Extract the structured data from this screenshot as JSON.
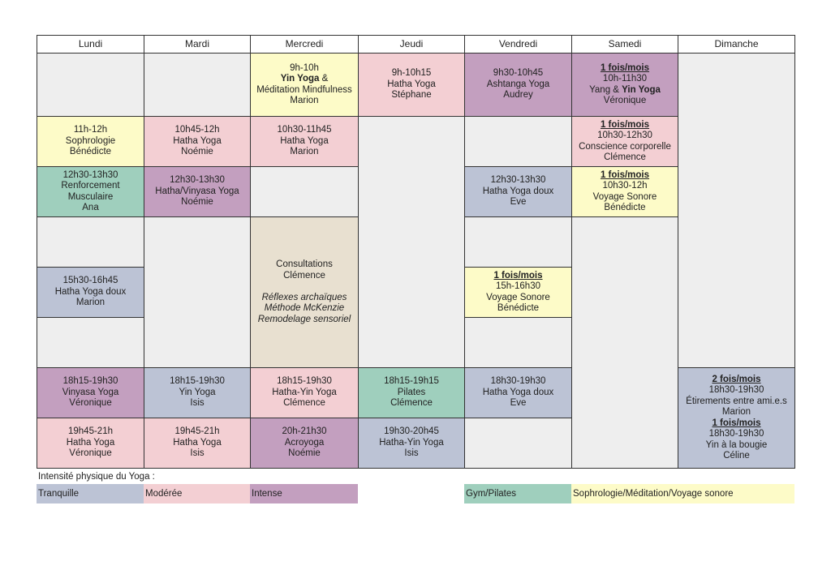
{
  "colors": {
    "tranquille": "#bcc3d5",
    "moderee": "#f3cfd3",
    "intense": "#c39fbf",
    "gym": "#9fcfbd",
    "sophro": "#fdfbc8",
    "consult": "#e8e0d0",
    "empty": "#eeeeee"
  },
  "days": [
    "Lundi",
    "Mardi",
    "Mercredi",
    "Jeudi",
    "Vendredi",
    "Samedi",
    "Dimanche"
  ],
  "cells": {
    "mer1": {
      "color": "sophro",
      "lines": [
        [
          {
            "t": "9h-10h"
          }
        ],
        [
          {
            "t": "Yin Yoga",
            "b": 1
          },
          {
            "t": " &"
          }
        ],
        [
          {
            "t": "Méditation Mindfulness"
          }
        ],
        [
          {
            "t": "Marion"
          }
        ]
      ]
    },
    "jeu1": {
      "color": "moderee",
      "lines": [
        [
          {
            "t": "9h-10h15"
          }
        ],
        [
          {
            "t": "Hatha Yoga"
          }
        ],
        [
          {
            "t": "Stéphane"
          }
        ]
      ]
    },
    "ven1": {
      "color": "intense",
      "lines": [
        [
          {
            "t": "9h30-10h45"
          }
        ],
        [
          {
            "t": "Ashtanga Yoga"
          }
        ],
        [
          {
            "t": "Audrey"
          }
        ]
      ]
    },
    "sam1": {
      "color": "intense",
      "lines": [
        [
          {
            "t": "1 fois/mois",
            "b": 1,
            "u": 1
          }
        ],
        [
          {
            "t": "10h-11h30"
          }
        ],
        [
          {
            "t": "Yang & "
          },
          {
            "t": "Yin Yoga",
            "b": 1
          }
        ],
        [
          {
            "t": "Véronique"
          }
        ]
      ]
    },
    "lun2": {
      "color": "sophro",
      "lines": [
        [
          {
            "t": "11h-12h"
          }
        ],
        [
          {
            "t": "Sophrologie"
          }
        ],
        [
          {
            "t": "Bénédicte"
          }
        ]
      ]
    },
    "mar2": {
      "color": "moderee",
      "lines": [
        [
          {
            "t": "10h45-12h"
          }
        ],
        [
          {
            "t": "Hatha Yoga"
          }
        ],
        [
          {
            "t": "Noémie"
          }
        ]
      ]
    },
    "mer2": {
      "color": "moderee",
      "lines": [
        [
          {
            "t": "10h30-11h45"
          }
        ],
        [
          {
            "t": "Hatha Yoga"
          }
        ],
        [
          {
            "t": "Marion"
          }
        ]
      ]
    },
    "sam2": {
      "color": "moderee",
      "lines": [
        [
          {
            "t": "1 fois/mois",
            "b": 1,
            "u": 1
          }
        ],
        [
          {
            "t": "10h30-12h30"
          }
        ],
        [
          {
            "t": "Conscience corporelle"
          }
        ],
        [
          {
            "t": "Clémence"
          }
        ]
      ]
    },
    "lun3": {
      "color": "gym",
      "lines": [
        [
          {
            "t": "12h30-13h30"
          }
        ],
        [
          {
            "t": "Renforcement"
          }
        ],
        [
          {
            "t": "Musculaire"
          }
        ],
        [
          {
            "t": "Ana"
          }
        ]
      ]
    },
    "mar3": {
      "color": "intense",
      "lines": [
        [
          {
            "t": "12h30-13h30"
          }
        ],
        [
          {
            "t": "Hatha/Vinyasa Yoga"
          }
        ],
        [
          {
            "t": "Noémie"
          }
        ]
      ]
    },
    "ven3": {
      "color": "tranquille",
      "lines": [
        [
          {
            "t": "12h30-13h30"
          }
        ],
        [
          {
            "t": "Hatha Yoga doux"
          }
        ],
        [
          {
            "t": "Eve"
          }
        ]
      ]
    },
    "sam3": {
      "color": "sophro",
      "lines": [
        [
          {
            "t": "1 fois/mois",
            "b": 1,
            "u": 1
          }
        ],
        [
          {
            "t": "10h30-12h"
          }
        ],
        [
          {
            "t": "Voyage Sonore"
          }
        ],
        [
          {
            "t": "Bénédicte"
          }
        ]
      ]
    },
    "mer4": {
      "color": "consult",
      "lines": [
        [
          {
            "t": "Consultations"
          }
        ],
        [
          {
            "t": "Clémence"
          }
        ],
        [
          {
            "t": " "
          }
        ],
        [
          {
            "t": "Réflexes archaïques",
            "i": 1
          }
        ],
        [
          {
            "t": "Méthode McKenzie",
            "i": 1
          }
        ],
        [
          {
            "t": "Remodelage sensoriel",
            "i": 1
          }
        ]
      ]
    },
    "lun5": {
      "color": "tranquille",
      "lines": [
        [
          {
            "t": "15h30-16h45"
          }
        ],
        [
          {
            "t": "Hatha Yoga doux"
          }
        ],
        [
          {
            "t": "Marion"
          }
        ]
      ]
    },
    "ven5": {
      "color": "sophro",
      "lines": [
        [
          {
            "t": "1 fois/mois",
            "b": 1,
            "u": 1
          }
        ],
        [
          {
            "t": "15h-16h30"
          }
        ],
        [
          {
            "t": "Voyage Sonore"
          }
        ],
        [
          {
            "t": "Bénédicte"
          }
        ]
      ]
    },
    "lun7": {
      "color": "intense",
      "lines": [
        [
          {
            "t": "18h15-19h30"
          }
        ],
        [
          {
            "t": "Vinyasa Yoga"
          }
        ],
        [
          {
            "t": "Véronique"
          }
        ]
      ]
    },
    "mar7": {
      "color": "tranquille",
      "lines": [
        [
          {
            "t": "18h15-19h30"
          }
        ],
        [
          {
            "t": "Yin Yoga"
          }
        ],
        [
          {
            "t": "Isis"
          }
        ]
      ]
    },
    "mer7": {
      "color": "moderee",
      "lines": [
        [
          {
            "t": "18h15-19h30"
          }
        ],
        [
          {
            "t": "Hatha-Yin Yoga"
          }
        ],
        [
          {
            "t": "Clémence"
          }
        ]
      ]
    },
    "jeu7": {
      "color": "gym",
      "lines": [
        [
          {
            "t": "18h15-19h15"
          }
        ],
        [
          {
            "t": "Pilates"
          }
        ],
        [
          {
            "t": "Clémence"
          }
        ]
      ]
    },
    "ven7": {
      "color": "tranquille",
      "lines": [
        [
          {
            "t": "18h30-19h30"
          }
        ],
        [
          {
            "t": "Hatha Yoga doux"
          }
        ],
        [
          {
            "t": "Eve"
          }
        ]
      ]
    },
    "dim7": {
      "color": "tranquille",
      "lines": [
        [
          {
            "t": "2 fois/mois",
            "b": 1,
            "u": 1
          }
        ],
        [
          {
            "t": "18h30-19h30"
          }
        ],
        [
          {
            "t": "Étirements entre ami.e.s"
          }
        ],
        [
          {
            "t": "Marion"
          }
        ],
        [
          {
            "t": "1 fois/mois",
            "b": 1,
            "u": 1
          }
        ],
        [
          {
            "t": "18h30-19h30"
          }
        ],
        [
          {
            "t": "Yin à la bougie"
          }
        ],
        [
          {
            "t": "Céline"
          }
        ]
      ]
    },
    "lun8": {
      "color": "moderee",
      "lines": [
        [
          {
            "t": "19h45-21h"
          }
        ],
        [
          {
            "t": "Hatha Yoga"
          }
        ],
        [
          {
            "t": "Véronique"
          }
        ]
      ]
    },
    "mar8": {
      "color": "moderee",
      "lines": [
        [
          {
            "t": "19h45-21h"
          }
        ],
        [
          {
            "t": "Hatha Yoga"
          }
        ],
        [
          {
            "t": "Isis"
          }
        ]
      ]
    },
    "mer8": {
      "color": "intense",
      "lines": [
        [
          {
            "t": "20h-21h30"
          }
        ],
        [
          {
            "t": "Acroyoga"
          }
        ],
        [
          {
            "t": "Noémie"
          }
        ]
      ]
    },
    "jeu8": {
      "color": "tranquille",
      "lines": [
        [
          {
            "t": "19h30-20h45"
          }
        ],
        [
          {
            "t": "Hatha-Yin Yoga"
          }
        ],
        [
          {
            "t": "Isis"
          }
        ]
      ]
    }
  },
  "legend": {
    "title": "Intensité physique du Yoga :",
    "items": [
      {
        "label": "Tranquille",
        "color": "tranquille"
      },
      {
        "label": "Modérée",
        "color": "moderee"
      },
      {
        "label": "Intense",
        "color": "intense"
      },
      {
        "label": "Gym/Pilates",
        "color": "gym"
      },
      {
        "label": "Sophrologie/Méditation/Voyage sonore",
        "color": "sophro"
      }
    ]
  }
}
